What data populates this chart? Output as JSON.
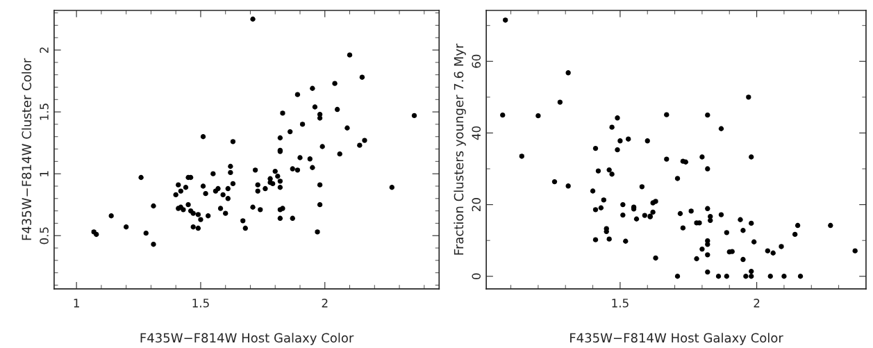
{
  "chart_data": [
    {
      "type": "scatter",
      "xlabel": "F435W−F814W Host Galaxy Color",
      "ylabel": "F435W−F814W Cluster Color",
      "marker": "circle",
      "grid": false,
      "xlim": [
        0.91,
        2.46
      ],
      "ylim": [
        0.07,
        2.32
      ],
      "xticks": [
        1,
        {
          "value": 1.1,
          "label": null
        },
        {
          "value": 1.2,
          "label": null
        },
        {
          "value": 1.3,
          "label": null
        },
        {
          "value": 1.4,
          "label": null
        },
        1.5,
        {
          "value": 1.6,
          "label": null
        },
        {
          "value": 1.7,
          "label": null
        },
        {
          "value": 1.8,
          "label": null
        },
        {
          "value": 1.9,
          "label": null
        },
        2,
        {
          "value": 2.1,
          "label": null
        },
        {
          "value": 2.2,
          "label": null
        },
        {
          "value": 2.3,
          "label": null
        },
        {
          "value": 2.4,
          "label": null
        }
      ],
      "yticks": [
        {
          "value": 0.1,
          "label": null
        },
        {
          "value": 0.2,
          "label": null
        },
        {
          "value": 0.3,
          "label": null
        },
        {
          "value": 0.4,
          "label": null
        },
        0.5,
        {
          "value": 0.6,
          "label": null
        },
        {
          "value": 0.7,
          "label": null
        },
        {
          "value": 0.8,
          "label": null
        },
        {
          "value": 0.9,
          "label": null
        },
        1,
        {
          "value": 1.1,
          "label": null
        },
        {
          "value": 1.2,
          "label": null
        },
        {
          "value": 1.3,
          "label": null
        },
        {
          "value": 1.4,
          "label": null
        },
        1.5,
        {
          "value": 1.6,
          "label": null
        },
        {
          "value": 1.7,
          "label": null
        },
        {
          "value": 1.8,
          "label": null
        },
        {
          "value": 1.9,
          "label": null
        },
        2,
        {
          "value": 2.1,
          "label": null
        },
        {
          "value": 2.2,
          "label": null
        },
        {
          "value": 2.3,
          "label": null
        }
      ],
      "series": [
        {
          "color": "#000000",
          "x": [
            1.07,
            1.08,
            1.14,
            1.2,
            1.26,
            1.28,
            1.31,
            1.31,
            1.4,
            1.41,
            1.42,
            1.41,
            1.42,
            1.43,
            1.44,
            1.45,
            1.45,
            1.46,
            1.46,
            1.47,
            1.47,
            1.49,
            1.49,
            1.5,
            1.51,
            1.51,
            1.52,
            1.53,
            1.55,
            1.56,
            1.57,
            1.58,
            1.59,
            1.6,
            1.61,
            1.61,
            1.62,
            1.62,
            1.63,
            1.63,
            1.67,
            1.68,
            1.71,
            2.1,
            2.15,
            2.04,
            1.95,
            1.89,
            1.96,
            2.05,
            1.83,
            1.98,
            1.98,
            2.36,
            1.91,
            1.86,
            2.09,
            1.82,
            1.82,
            1.82,
            2.16,
            2.14,
            1.99,
            2.06,
            1.9,
            1.94,
            1.95,
            1.87,
            1.89,
            1.72,
            1.8,
            1.81,
            1.78,
            1.78,
            1.79,
            1.82,
            1.73,
            1.73,
            1.76,
            1.82,
            1.98,
            2.27,
            1.71,
            1.74,
            1.82,
            1.83,
            1.98,
            1.82,
            1.87,
            1.97
          ],
          "values": [
            0.53,
            0.51,
            0.66,
            0.57,
            0.97,
            0.52,
            0.43,
            0.74,
            0.83,
            0.91,
            0.86,
            0.72,
            0.73,
            0.71,
            0.89,
            0.75,
            0.97,
            0.97,
            0.7,
            0.68,
            0.57,
            0.56,
            0.67,
            0.63,
            0.9,
            1.3,
            0.84,
            0.66,
            1.0,
            0.86,
            0.88,
            0.72,
            0.83,
            0.68,
            0.8,
            0.88,
            1.01,
            1.06,
            0.92,
            1.26,
            0.62,
            0.56,
            2.25,
            1.96,
            1.78,
            1.73,
            1.69,
            1.64,
            1.54,
            1.52,
            1.49,
            1.48,
            1.45,
            1.47,
            1.4,
            1.34,
            1.37,
            1.29,
            1.18,
            1.19,
            1.27,
            1.23,
            1.22,
            1.16,
            1.13,
            1.12,
            1.05,
            1.04,
            1.03,
            1.03,
            1.02,
            0.98,
            0.96,
            0.93,
            0.92,
            0.94,
            0.91,
            0.86,
            0.88,
            0.89,
            0.91,
            0.89,
            0.73,
            0.71,
            0.71,
            0.72,
            0.75,
            0.64,
            0.64,
            0.53
          ]
        }
      ]
    },
    {
      "type": "scatter",
      "xlabel": "F435W−F814W Host Galaxy Color",
      "ylabel": "Fraction Clusters younger 7.6 Myr",
      "marker": "circle",
      "grid": false,
      "xlim": [
        1.01,
        2.4
      ],
      "ylim": [
        -3.5,
        74.2
      ],
      "xticks": [
        {
          "value": 1.1,
          "label": null
        },
        {
          "value": 1.2,
          "label": null
        },
        {
          "value": 1.3,
          "label": null
        },
        {
          "value": 1.4,
          "label": null
        },
        1.5,
        {
          "value": 1.6,
          "label": null
        },
        {
          "value": 1.7,
          "label": null
        },
        {
          "value": 1.8,
          "label": null
        },
        {
          "value": 1.9,
          "label": null
        },
        2,
        {
          "value": 2.1,
          "label": null
        },
        {
          "value": 2.2,
          "label": null
        },
        {
          "value": 2.3,
          "label": null
        }
      ],
      "yticks": [
        0,
        {
          "value": 10,
          "label": null
        },
        20,
        {
          "value": 30,
          "label": null
        },
        40,
        {
          "value": 50,
          "label": null
        },
        60,
        {
          "value": 70,
          "label": null
        }
      ],
      "series": [
        {
          "color": "#000000",
          "x": [
            1.08,
            1.07,
            1.2,
            1.14,
            1.31,
            1.28,
            1.26,
            1.31,
            1.49,
            1.47,
            1.41,
            1.49,
            1.5,
            1.53,
            1.6,
            1.67,
            1.67,
            1.42,
            1.46,
            1.47,
            1.58,
            1.4,
            1.44,
            1.41,
            1.43,
            1.51,
            1.51,
            1.55,
            1.55,
            1.56,
            1.59,
            1.61,
            1.61,
            1.62,
            1.62,
            1.63,
            1.45,
            1.45,
            1.41,
            1.46,
            1.52,
            1.63,
            1.97,
            1.82,
            1.87,
            1.8,
            1.98,
            1.73,
            1.74,
            1.82,
            1.71,
            1.72,
            1.76,
            1.82,
            1.83,
            1.83,
            1.87,
            1.94,
            1.78,
            1.79,
            1.98,
            2.15,
            2.27,
            1.73,
            1.89,
            1.95,
            2.14,
            1.82,
            1.82,
            1.99,
            1.8,
            2.09,
            1.9,
            1.91,
            2.04,
            2.06,
            2.36,
            1.82,
            1.78,
            1.95,
            1.82,
            1.98,
            1.71,
            1.86,
            1.89,
            1.96,
            1.98,
            2.05,
            2.1,
            2.16
          ],
          "values": [
            71.5,
            45.0,
            44.8,
            33.5,
            56.8,
            48.6,
            26.4,
            25.2,
            44.2,
            41.6,
            35.7,
            35.3,
            37.8,
            38.3,
            37.8,
            45.1,
            32.7,
            29.4,
            29.7,
            28.5,
            25.0,
            23.8,
            21.3,
            18.6,
            19.1,
            20.0,
            17.1,
            19.3,
            18.8,
            16.0,
            17.0,
            16.8,
            16.6,
            17.9,
            20.5,
            20.9,
            13.3,
            12.5,
            10.2,
            10.4,
            9.8,
            5.1,
            50.0,
            45.0,
            41.2,
            33.3,
            33.3,
            32.1,
            31.9,
            30.0,
            27.3,
            17.5,
            18.2,
            18.9,
            16.7,
            15.6,
            17.2,
            15.8,
            14.9,
            14.9,
            14.8,
            14.2,
            14.2,
            13.5,
            12.2,
            12.8,
            11.7,
            9.9,
            8.9,
            9.6,
            7.6,
            8.3,
            6.8,
            6.9,
            7.1,
            6.5,
            7.1,
            6.0,
            4.9,
            4.7,
            1.2,
            1.4,
            0,
            0,
            0,
            0,
            0,
            0,
            0,
            0
          ]
        }
      ]
    }
  ]
}
